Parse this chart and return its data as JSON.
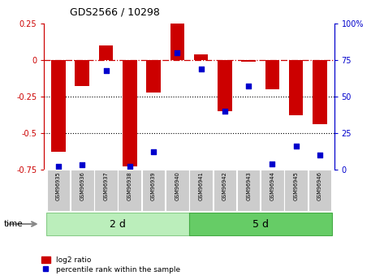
{
  "title": "GDS2566 / 10298",
  "samples": [
    "GSM96935",
    "GSM96936",
    "GSM96937",
    "GSM96938",
    "GSM96939",
    "GSM96940",
    "GSM96941",
    "GSM96942",
    "GSM96943",
    "GSM96944",
    "GSM96945",
    "GSM96946"
  ],
  "log2_ratio": [
    -0.63,
    -0.18,
    0.1,
    -0.73,
    -0.22,
    0.25,
    0.04,
    -0.35,
    -0.01,
    -0.2,
    -0.38,
    -0.44
  ],
  "percentile_rank": [
    2,
    3,
    68,
    2,
    12,
    80,
    69,
    40,
    57,
    4,
    16,
    10
  ],
  "group1_label": "2 d",
  "group2_label": "5 d",
  "group1_count": 6,
  "group2_count": 6,
  "bar_color": "#cc0000",
  "dot_color": "#0000cc",
  "ylim_left": [
    -0.75,
    0.25
  ],
  "ylim_right": [
    0,
    100
  ],
  "dotted_lines": [
    -0.25,
    -0.5
  ],
  "background_plot": "#ffffff",
  "group1_bg": "#bbeebb",
  "group2_bg": "#66cc66",
  "sample_bg": "#cccccc",
  "time_label": "time",
  "legend_log2": "log2 ratio",
  "legend_pct": "percentile rank within the sample",
  "title_color": "#000000",
  "left_axis_color": "#cc0000",
  "right_axis_color": "#0000cc",
  "left_yticks": [
    -0.75,
    -0.5,
    -0.25,
    0,
    0.25
  ],
  "left_yticklabels": [
    "-0.75",
    "-0.5",
    "-0.25",
    "0",
    "0.25"
  ],
  "right_yticks": [
    0,
    25,
    50,
    75,
    100
  ],
  "right_yticklabels": [
    "0",
    "25",
    "50",
    "75",
    "100%"
  ]
}
